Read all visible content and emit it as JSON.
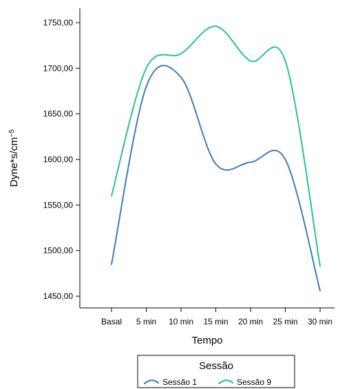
{
  "chart_data": {
    "type": "line",
    "categories": [
      "Basal",
      "5 min",
      "10 min",
      "15 min",
      "20 min",
      "25 min",
      "30 min"
    ],
    "series": [
      {
        "name": "Sessão 1",
        "color": "#3b7bbf",
        "values": [
          1485,
          1680,
          1690,
          1595,
          1597,
          1600,
          1456
        ]
      },
      {
        "name": "Sessão 9",
        "color": "#2bbf96",
        "values": [
          1560,
          1700,
          1716,
          1746,
          1708,
          1708,
          1483
        ]
      }
    ],
    "xlabel": "Tempo",
    "ylabel": "Dyne*s/cm",
    "ylabel_superscript": "−5",
    "ylim": [
      1440,
      1775
    ],
    "yticks": [
      1450,
      1500,
      1550,
      1600,
      1650,
      1700,
      1750
    ],
    "ytick_labels": [
      "1450,00",
      "1500,00",
      "1550,00",
      "1600,00",
      "1650,00",
      "1700,00",
      "1750,00"
    ],
    "legend": {
      "title": "Sessão",
      "placement": "bottom"
    }
  }
}
